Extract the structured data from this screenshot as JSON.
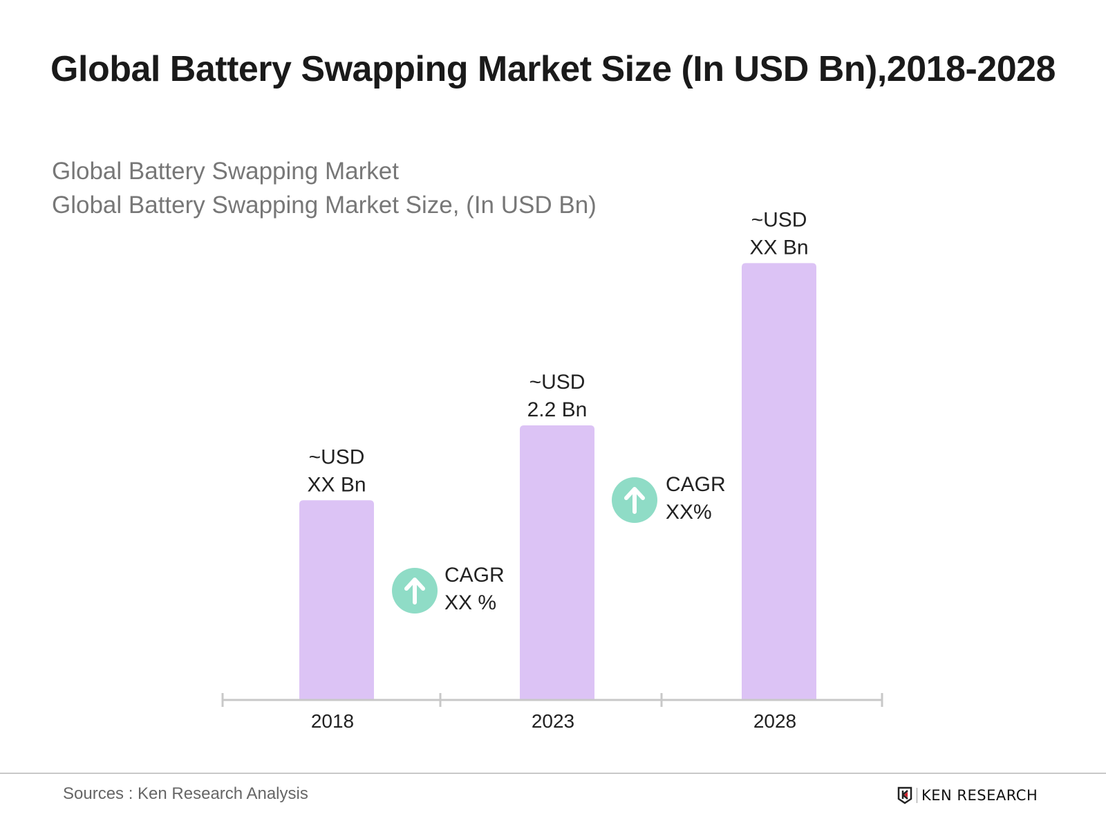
{
  "title": "Global Battery Swapping Market Size (In USD Bn),2018-2028",
  "subtitle_line1": "Global Battery Swapping Market",
  "subtitle_line2": "Global Battery Swapping Market Size, (In USD Bn)",
  "chart_data": {
    "type": "bar",
    "categories": [
      "2018",
      "2023",
      "2028"
    ],
    "values": [
      1.6,
      2.2,
      3.5
    ],
    "data_labels": [
      {
        "line1": "~USD",
        "line2": "XX Bn"
      },
      {
        "line1": "~USD",
        "line2": "2.2 Bn"
      },
      {
        "line1": "~USD",
        "line2": "XX Bn"
      }
    ],
    "annotations": [
      {
        "icon": "arrow-up-icon",
        "line1": "CAGR",
        "line2": "XX %"
      },
      {
        "icon": "arrow-up-icon",
        "line1": "CAGR",
        "line2": "XX%"
      }
    ],
    "title": "Global Battery Swapping Market Size (In USD Bn),2018-2028",
    "xlabel": "",
    "ylabel": "",
    "ylim": [
      0,
      3.6
    ],
    "grid": false,
    "bar_color": "#dcc3f5",
    "annotation_color": "#8fdcc6"
  },
  "footer": {
    "source": "Sources : Ken Research Analysis",
    "logo_text": "KEN RESEARCH"
  }
}
